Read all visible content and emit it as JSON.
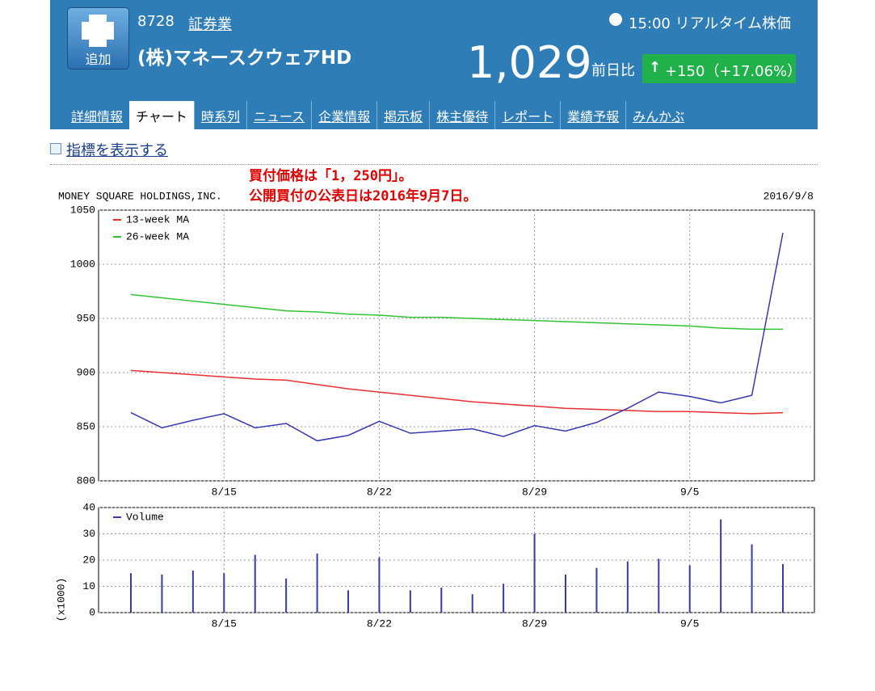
{
  "header": {
    "button": "追加",
    "code": "8728",
    "sector": "証券業",
    "name": "(株)マネースクウェアHD",
    "time": "15:00 リアルタイム株価",
    "price": "1,029",
    "change_label": "前日比",
    "change": "+150（+17.06%）"
  },
  "tabs": [
    "詳細情報",
    "チャート",
    "時系列",
    "ニュース",
    "企業情報",
    "掲示板",
    "株主優待",
    "レポート",
    "業績予報",
    "みんかぶ"
  ],
  "active_tab": "チャート",
  "indicator_link": "指標を表示する",
  "chart_data": [
    {
      "type": "line",
      "title": "MONEY SQUARE HOLDINGS,INC.",
      "date": "2016/9/8",
      "annotations": [
        "買付価格は「1，250円」。",
        "公開買付の公表日は2016年9月7日。"
      ],
      "categories": [
        null,
        null,
        null,
        "8/15",
        null,
        null,
        null,
        null,
        "8/22",
        null,
        null,
        null,
        null,
        "8/29",
        null,
        null,
        null,
        null,
        "9/5",
        null,
        null,
        null
      ],
      "series": [
        {
          "name": "13-week MA",
          "color": "#e83030",
          "values": [
            902,
            900,
            898,
            896,
            894,
            893,
            889,
            885,
            882,
            879,
            876,
            873,
            871,
            869,
            867,
            866,
            865,
            864,
            864,
            863,
            862,
            863
          ]
        },
        {
          "name": "26-week MA",
          "color": "#33c233",
          "values": [
            972,
            969,
            966,
            963,
            960,
            957,
            956,
            954,
            953,
            951,
            951,
            950,
            949,
            948,
            947,
            946,
            945,
            944,
            943,
            941,
            940,
            940
          ]
        },
        {
          "color": "#3838b0",
          "values": [
            863,
            849,
            856,
            862,
            849,
            853,
            837,
            842,
            855,
            844,
            846,
            848,
            841,
            851,
            846,
            854,
            867,
            882,
            878,
            872,
            879,
            1029
          ]
        }
      ],
      "ylim": [
        800,
        1050
      ],
      "yticks": [
        800,
        850,
        900,
        950,
        1000,
        1050
      ],
      "grid": true,
      "legend": "upper left"
    },
    {
      "type": "bar",
      "ylabel": "(x1000)",
      "categories": [
        null,
        null,
        null,
        "8/15",
        null,
        null,
        null,
        null,
        "8/22",
        null,
        null,
        null,
        null,
        "8/29",
        null,
        null,
        null,
        null,
        "9/5",
        null,
        null,
        null
      ],
      "series": [
        {
          "name": "Volume",
          "color": "#3838b0",
          "values": [
            15,
            14.5,
            16,
            15,
            22,
            13,
            22.5,
            8.5,
            21,
            8.5,
            9.5,
            7,
            11,
            30,
            14.5,
            17,
            19.5,
            20.5,
            18,
            35.5,
            26,
            18.5
          ]
        }
      ],
      "ylim": [
        0,
        40
      ],
      "yticks": [
        0,
        10,
        20,
        30,
        40
      ],
      "grid": true,
      "legend": "upper left"
    }
  ]
}
